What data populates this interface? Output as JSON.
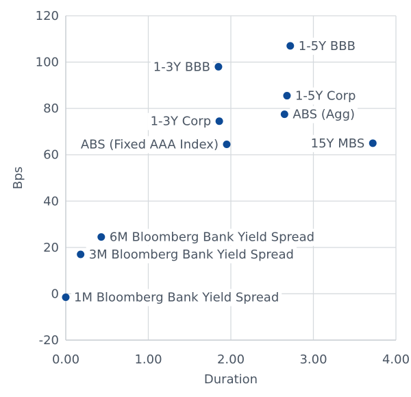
{
  "chart_data": {
    "type": "scatter",
    "title": "",
    "xlabel": "Duration",
    "ylabel": "Bps",
    "xlim": [
      0,
      4
    ],
    "ylim": [
      -20,
      120
    ],
    "xticks": [
      0,
      1,
      2,
      3,
      4
    ],
    "yticks": [
      -20,
      0,
      20,
      40,
      60,
      80,
      100,
      120
    ],
    "xtick_labels": [
      "0.00",
      "1.00",
      "2.00",
      "3.00",
      "4.00"
    ],
    "ytick_labels": [
      "-20",
      "0",
      "20",
      "40",
      "60",
      "80",
      "100",
      "120"
    ],
    "grid": true,
    "marker_color": "#0d4a96",
    "grid_color": "#d6dade",
    "points": [
      {
        "label": "1M Bloomberg Bank Yield Spread",
        "x": 0.0,
        "y": -1.5,
        "label_side": "right"
      },
      {
        "label": "3M Bloomberg Bank Yield Spread",
        "x": 0.18,
        "y": 17,
        "label_side": "right"
      },
      {
        "label": "6M Bloomberg Bank Yield Spread",
        "x": 0.43,
        "y": 24.5,
        "label_side": "right"
      },
      {
        "label": "1-3Y BBB",
        "x": 1.85,
        "y": 98,
        "label_side": "left"
      },
      {
        "label": "1-3Y Corp",
        "x": 1.86,
        "y": 74.5,
        "label_side": "left"
      },
      {
        "label": "ABS (Fixed AAA Index)",
        "x": 1.95,
        "y": 64.5,
        "label_side": "left"
      },
      {
        "label": "1-5Y BBB",
        "x": 2.72,
        "y": 107,
        "label_side": "right"
      },
      {
        "label": "1-5Y Corp",
        "x": 2.68,
        "y": 85.5,
        "label_side": "right"
      },
      {
        "label": "ABS (Agg)",
        "x": 2.65,
        "y": 77.5,
        "label_side": "right"
      },
      {
        "label": "15Y MBS",
        "x": 3.72,
        "y": 65,
        "label_side": "left"
      }
    ]
  }
}
